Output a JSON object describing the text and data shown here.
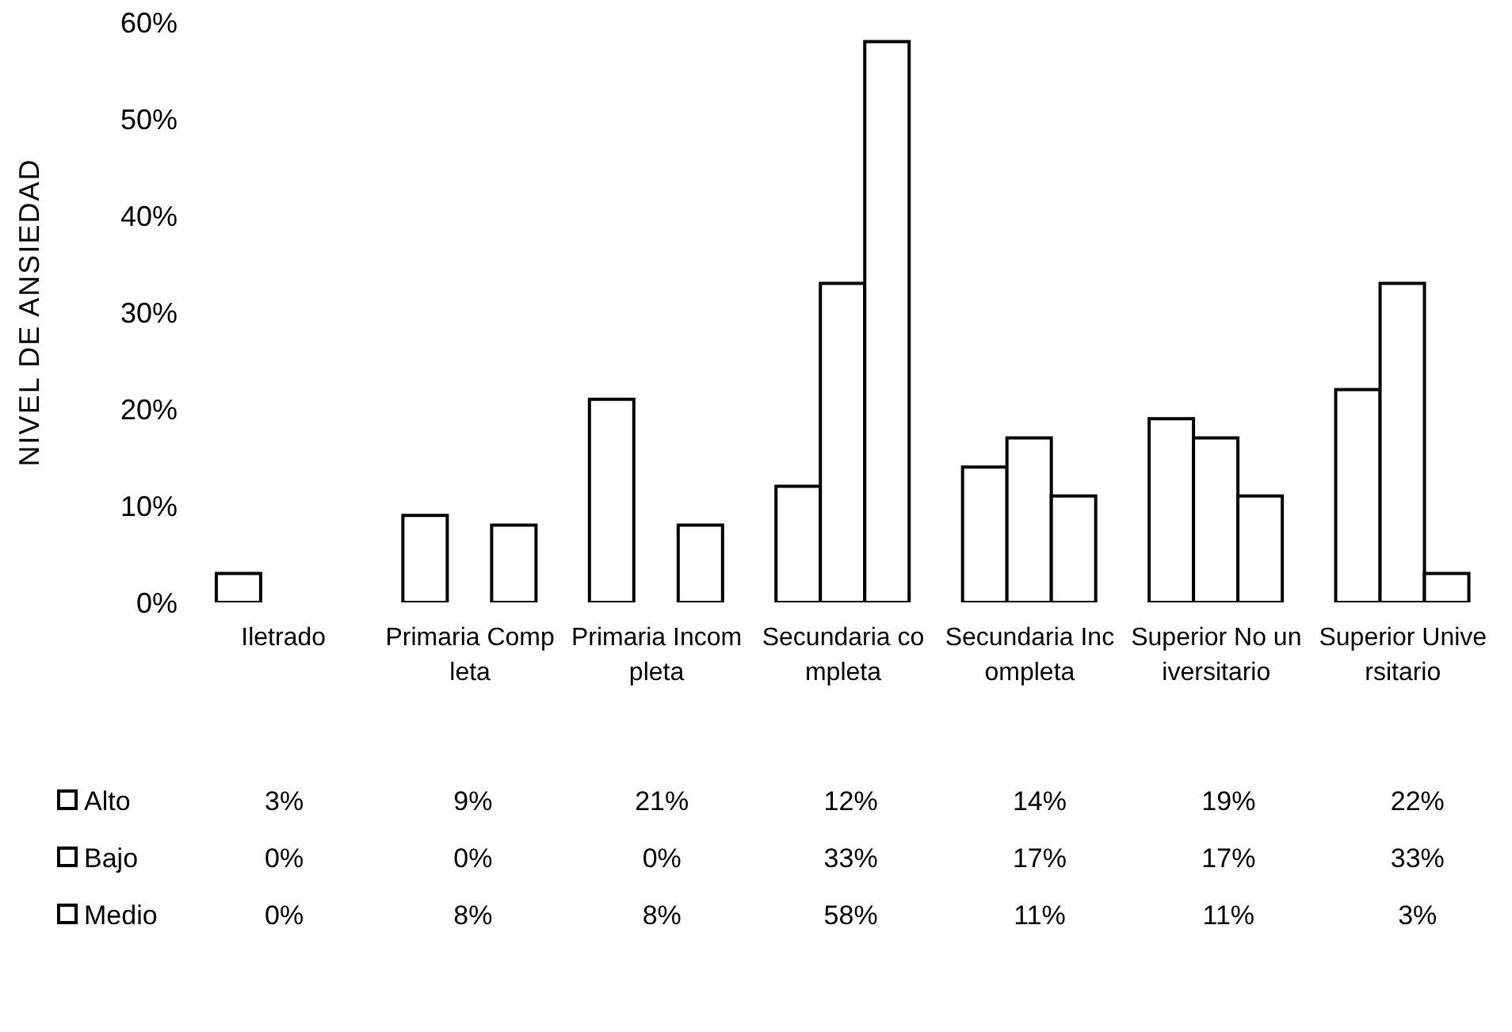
{
  "chart_data": {
    "type": "bar",
    "ylabel": "NIVEL DE ANSIEDAD",
    "categories": [
      "Iletrado",
      "Primaria Completa",
      "Primaria Incompleta",
      "Secundaria completa",
      "Secundaria Incompleta",
      "Superior No universitario",
      "Superior Universitario"
    ],
    "series": [
      {
        "name": "Alto",
        "color": "#ffffff",
        "values": [
          3,
          9,
          21,
          12,
          14,
          19,
          22
        ],
        "value_labels": [
          "3%",
          "9%",
          "21%",
          "12%",
          "14%",
          "19%",
          "22%"
        ]
      },
      {
        "name": "Bajo",
        "color": "#ffffff",
        "values": [
          0,
          0,
          0,
          33,
          17,
          17,
          33
        ],
        "value_labels": [
          "0%",
          "0%",
          "0%",
          "33%",
          "17%",
          "17%",
          "33%"
        ]
      },
      {
        "name": "Medio",
        "color": "#ffffff",
        "values": [
          0,
          8,
          8,
          58,
          11,
          11,
          3
        ],
        "value_labels": [
          "0%",
          "8%",
          "8%",
          "58%",
          "11%",
          "11%",
          "3%"
        ]
      }
    ],
    "ylim": [
      0,
      60
    ],
    "yticks": [
      {
        "value": 0,
        "label": "0%"
      },
      {
        "value": 10,
        "label": "10%"
      },
      {
        "value": 20,
        "label": "20%"
      },
      {
        "value": 30,
        "label": "30%"
      },
      {
        "value": 40,
        "label": "40%"
      },
      {
        "value": 50,
        "label": "50%"
      },
      {
        "value": 60,
        "label": "60%"
      }
    ],
    "grid": false,
    "legend": "bottom"
  }
}
